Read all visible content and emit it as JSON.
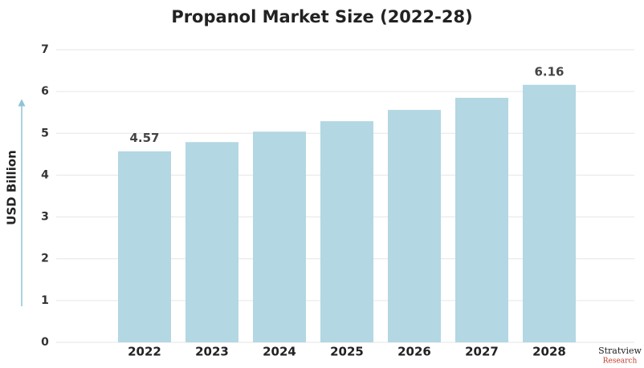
{
  "chart_data": {
    "type": "bar",
    "title": "Propanol Market Size (2022-28)",
    "ylabel": "USD Billion",
    "categories": [
      "2022",
      "2023",
      "2024",
      "2025",
      "2026",
      "2027",
      "2028"
    ],
    "values": [
      4.57,
      4.79,
      5.04,
      5.29,
      5.56,
      5.85,
      6.16
    ],
    "value_labels": [
      "4.57",
      null,
      null,
      null,
      null,
      null,
      "6.16"
    ],
    "color": "#b3d7e3",
    "ylim": [
      0,
      7
    ],
    "yticks": [
      0,
      1,
      2,
      3,
      4,
      5,
      6,
      7
    ],
    "grid": true
  },
  "watermark": {
    "name": "Stratview",
    "sub": "Research"
  }
}
